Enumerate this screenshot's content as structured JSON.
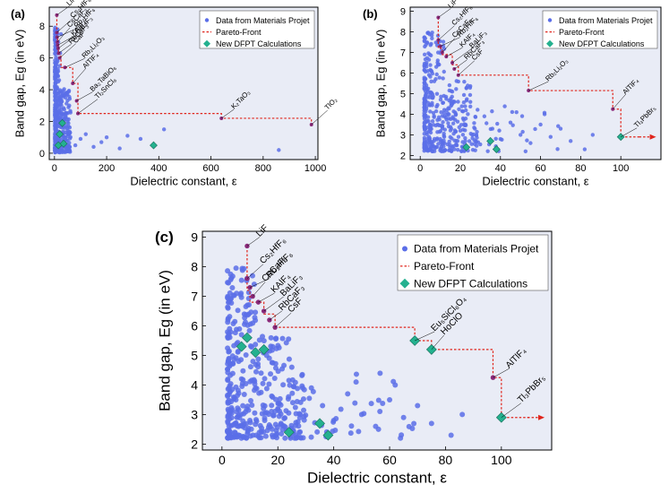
{
  "chart_data": [
    {
      "type": "scatter",
      "panel_label": "(a)",
      "xlabel": "Dielectric constant, ε",
      "ylabel": "Band gap, Eg (in eV)",
      "xlim": [
        -20,
        1010
      ],
      "ylim": [
        -0.4,
        9.2
      ],
      "xticks": [
        0,
        200,
        400,
        600,
        800,
        1000
      ],
      "yticks": [
        0,
        2,
        4,
        6,
        8
      ],
      "legend": {
        "position": "top-right",
        "entries": [
          "Data from Materials Projet",
          "Pareto-Front",
          "New DFPT Calculations"
        ]
      },
      "pareto_front": [
        [
          9,
          8.7
        ],
        [
          9,
          7.2
        ],
        [
          12,
          7.2
        ],
        [
          12,
          6.8
        ],
        [
          15,
          6.8
        ],
        [
          15,
          6.4
        ],
        [
          20,
          6.4
        ],
        [
          20,
          6.1
        ],
        [
          25,
          6.1
        ],
        [
          25,
          5.4
        ],
        [
          70,
          5.4
        ],
        [
          70,
          4.4
        ],
        [
          90,
          4.4
        ],
        [
          90,
          2.5
        ],
        [
          640,
          2.5
        ],
        [
          640,
          2.2
        ],
        [
          985,
          2.2
        ],
        [
          985,
          1.8
        ]
      ],
      "pareto_labels": [
        {
          "text": "LiF",
          "x": 9,
          "y": 8.7
        },
        {
          "text": "Cs₂HfF₆",
          "x": 9,
          "y": 7.6
        },
        {
          "text": "Rb₂HfF₆",
          "x": 10,
          "y": 7.3
        },
        {
          "text": "CsCaF₃",
          "x": 11,
          "y": 7.0
        },
        {
          "text": "KAlF₄",
          "x": 12,
          "y": 6.8
        },
        {
          "text": "BaLiF₃",
          "x": 14,
          "y": 6.6
        },
        {
          "text": "RbCaF₃",
          "x": 16,
          "y": 6.3
        },
        {
          "text": "CaF",
          "x": 20,
          "y": 6.0
        },
        {
          "text": "Rb₂Li₂O₃",
          "x": 40,
          "y": 5.4
        },
        {
          "text": "AlTlF₄",
          "x": 70,
          "y": 4.4
        },
        {
          "text": "Ba₂TaBiO₆",
          "x": 85,
          "y": 3.3
        },
        {
          "text": "Tl₂SnCl₆",
          "x": 90,
          "y": 2.5
        },
        {
          "text": "K₂TaO₃",
          "x": 640,
          "y": 2.2
        },
        {
          "text": "TlO₂",
          "x": 985,
          "y": 1.8
        }
      ],
      "dfpt_points": [
        [
          15,
          0.5
        ],
        [
          20,
          1.2
        ],
        [
          30,
          1.9
        ],
        [
          35,
          0.6
        ],
        [
          380,
          0.5
        ]
      ],
      "materials_project_sample": [
        [
          5,
          0.4
        ],
        [
          8,
          1.0
        ],
        [
          10,
          2.1
        ],
        [
          12,
          3.0
        ],
        [
          15,
          3.8
        ],
        [
          18,
          4.6
        ],
        [
          20,
          5.5
        ],
        [
          22,
          6.3
        ],
        [
          25,
          7.5
        ],
        [
          30,
          2.4
        ],
        [
          40,
          1.6
        ],
        [
          50,
          0.8
        ],
        [
          60,
          1.3
        ],
        [
          80,
          0.5
        ],
        [
          100,
          0.9
        ],
        [
          120,
          1.2
        ],
        [
          150,
          0.4
        ],
        [
          180,
          0.7
        ],
        [
          200,
          1.0
        ],
        [
          250,
          0.3
        ],
        [
          280,
          1.1
        ],
        [
          330,
          0.9
        ],
        [
          420,
          1.5
        ],
        [
          860,
          0.2
        ]
      ]
    },
    {
      "type": "scatter",
      "panel_label": "(b)",
      "xlabel": "Dielectric constant, ε",
      "ylabel": "Band gap, Eg (in eV)",
      "xlim": [
        -5,
        120
      ],
      "ylim": [
        1.8,
        9.2
      ],
      "xticks": [
        0,
        20,
        40,
        60,
        80,
        100
      ],
      "yticks": [
        2,
        3,
        4,
        5,
        6,
        7,
        8,
        9
      ],
      "legend": {
        "position": "top-right",
        "entries": [
          "Data from Materials Projet",
          "Pareto-Front",
          "New DFPT Calculations"
        ]
      },
      "pareto_front": [
        [
          9,
          8.7
        ],
        [
          9,
          7.2
        ],
        [
          11,
          7.2
        ],
        [
          11,
          6.9
        ],
        [
          16,
          6.9
        ],
        [
          16,
          6.4
        ],
        [
          19,
          6.4
        ],
        [
          19,
          5.9
        ],
        [
          54,
          5.9
        ],
        [
          54,
          5.15
        ],
        [
          96,
          5.15
        ],
        [
          96,
          4.25
        ],
        [
          100,
          4.25
        ],
        [
          100,
          2.9
        ],
        [
          110,
          2.9
        ]
      ],
      "pareto_labels": [
        {
          "text": "LiF",
          "x": 9,
          "y": 8.7
        },
        {
          "text": "Cs₂HfF₆",
          "x": 9,
          "y": 7.6
        },
        {
          "text": "Rb₂HfF₆",
          "x": 10,
          "y": 7.3
        },
        {
          "text": "CsCaF₃",
          "x": 11,
          "y": 7.0
        },
        {
          "text": "KAlF₄",
          "x": 13,
          "y": 6.8
        },
        {
          "text": "BaLiF₃",
          "x": 16,
          "y": 6.5
        },
        {
          "text": "RbCaF₃",
          "x": 17,
          "y": 6.2
        },
        {
          "text": "CsF",
          "x": 19,
          "y": 5.9
        },
        {
          "text": "Rb₂Li₂O₃",
          "x": 54,
          "y": 5.15
        },
        {
          "text": "AlTlF₄",
          "x": 96,
          "y": 4.25
        },
        {
          "text": "Tl₃PbBr₅",
          "x": 100,
          "y": 2.9
        }
      ],
      "dfpt_points": [
        [
          23,
          2.4
        ],
        [
          35,
          2.7
        ],
        [
          38,
          2.3
        ],
        [
          100,
          2.9
        ]
      ],
      "materials_project_sample": [
        [
          3,
          2.4
        ],
        [
          5,
          3.5
        ],
        [
          6,
          4.8
        ],
        [
          7,
          5.6
        ],
        [
          8,
          6.3
        ],
        [
          9,
          7.5
        ],
        [
          10,
          2.8
        ],
        [
          12,
          3.9
        ],
        [
          14,
          4.3
        ],
        [
          16,
          5.1
        ],
        [
          18,
          2.5
        ],
        [
          20,
          3.2
        ],
        [
          25,
          4.6
        ],
        [
          28,
          3.0
        ],
        [
          32,
          3.9
        ],
        [
          36,
          3.3
        ],
        [
          40,
          2.8
        ],
        [
          45,
          3.6
        ],
        [
          50,
          3.0
        ],
        [
          55,
          2.6
        ],
        [
          60,
          3.5
        ],
        [
          65,
          2.9
        ],
        [
          70,
          3.3
        ],
        [
          75,
          2.7
        ],
        [
          82,
          2.3
        ],
        [
          86,
          3.0
        ],
        [
          48,
          4.1
        ],
        [
          62,
          4.0
        ]
      ]
    },
    {
      "type": "scatter",
      "panel_label": "(c)",
      "xlabel": "Dielectric constant, ε",
      "ylabel": "Band gap, Eg (in eV)",
      "xlim": [
        -7,
        118
      ],
      "ylim": [
        1.8,
        9.2
      ],
      "xticks": [
        0,
        20,
        40,
        60,
        80,
        100
      ],
      "yticks": [
        2,
        3,
        4,
        5,
        6,
        7,
        8,
        9
      ],
      "legend": {
        "position": "top-right",
        "entries": [
          "Data from Materials Projet",
          "Pareto-Front",
          "New DFPT Calculations"
        ]
      },
      "pareto_front": [
        [
          9,
          8.7
        ],
        [
          9,
          7.2
        ],
        [
          10,
          7.2
        ],
        [
          10,
          6.8
        ],
        [
          15,
          6.8
        ],
        [
          15,
          6.4
        ],
        [
          19,
          6.4
        ],
        [
          19,
          5.95
        ],
        [
          69,
          5.95
        ],
        [
          69,
          5.5
        ],
        [
          75,
          5.5
        ],
        [
          75,
          5.2
        ],
        [
          97,
          5.2
        ],
        [
          97,
          4.25
        ],
        [
          100,
          4.25
        ],
        [
          100,
          2.9
        ],
        [
          110,
          2.9
        ]
      ],
      "pareto_labels": [
        {
          "text": "LiF",
          "x": 9,
          "y": 8.7
        },
        {
          "text": "Cs₂HfF₆",
          "x": 9,
          "y": 7.6
        },
        {
          "text": "Rb₂HfF₆",
          "x": 10,
          "y": 7.3
        },
        {
          "text": "CsCaF₃",
          "x": 11,
          "y": 7.0
        },
        {
          "text": "KAlF₄",
          "x": 13,
          "y": 6.8
        },
        {
          "text": "BaLiF₃",
          "x": 15,
          "y": 6.5
        },
        {
          "text": "RbCaF₃",
          "x": 17,
          "y": 6.2
        },
        {
          "text": "CsF",
          "x": 19,
          "y": 5.95
        },
        {
          "text": "Eu₅SiCl₆O₄",
          "x": 69,
          "y": 5.5
        },
        {
          "text": "HoClO",
          "x": 75,
          "y": 5.2
        },
        {
          "text": "AlTlF₄",
          "x": 97,
          "y": 4.25
        },
        {
          "text": "Tl₃PbBr₅",
          "x": 100,
          "y": 2.9
        }
      ],
      "dfpt_points": [
        [
          7,
          5.3
        ],
        [
          9,
          5.6
        ],
        [
          12,
          5.1
        ],
        [
          15,
          5.2
        ],
        [
          24,
          2.4
        ],
        [
          35,
          2.7
        ],
        [
          38,
          2.3
        ],
        [
          69,
          5.5
        ],
        [
          75,
          5.2
        ],
        [
          100,
          2.9
        ]
      ],
      "materials_project_sample": [
        [
          3,
          2.4
        ],
        [
          5,
          3.5
        ],
        [
          6,
          4.8
        ],
        [
          7,
          5.7
        ],
        [
          8,
          6.4
        ],
        [
          9,
          7.6
        ],
        [
          10,
          2.8
        ],
        [
          12,
          3.9
        ],
        [
          14,
          4.4
        ],
        [
          16,
          5.0
        ],
        [
          18,
          2.5
        ],
        [
          20,
          3.2
        ],
        [
          25,
          4.6
        ],
        [
          28,
          3.0
        ],
        [
          32,
          3.9
        ],
        [
          36,
          3.3
        ],
        [
          40,
          2.8
        ],
        [
          45,
          3.7
        ],
        [
          50,
          3.0
        ],
        [
          55,
          2.6
        ],
        [
          60,
          3.5
        ],
        [
          65,
          2.9
        ],
        [
          70,
          3.3
        ],
        [
          75,
          2.7
        ],
        [
          82,
          2.3
        ],
        [
          86,
          3.0
        ],
        [
          48,
          4.1
        ],
        [
          62,
          4.0
        ]
      ]
    }
  ]
}
